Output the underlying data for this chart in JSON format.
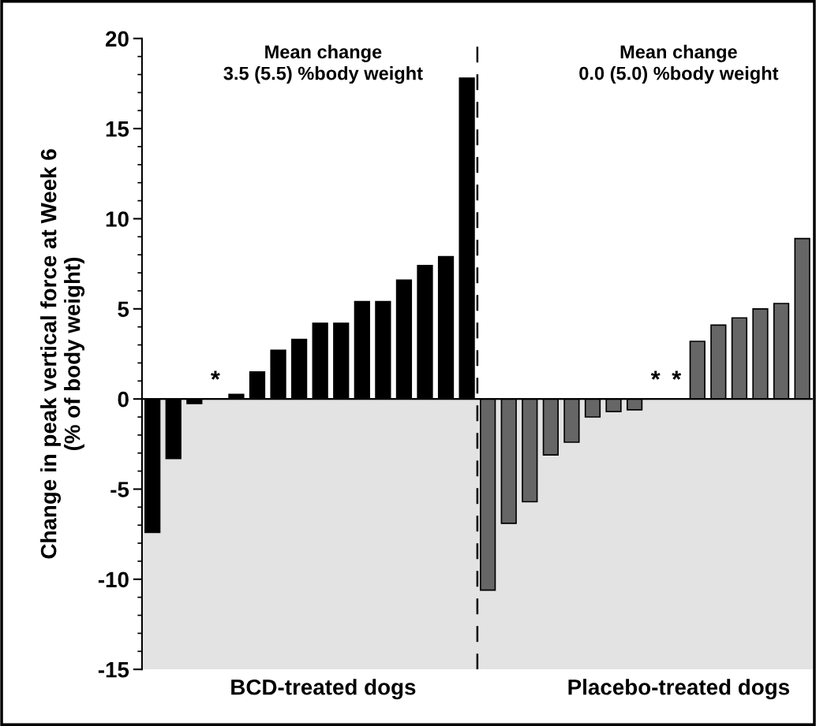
{
  "chart_data": {
    "type": "bar",
    "ylabel": "Change in peak vertical force at Week 6\n(% of body weight)",
    "annotations": [
      "Mean change\n3.5 (5.5) %body weight",
      "Mean change\n0.0 (5.0) %body weight",
      "BCD-treated dogs",
      "Placebo-treated dogs"
    ],
    "categories": [
      null,
      null,
      null,
      null,
      null,
      null,
      null,
      null,
      null,
      null,
      null,
      null,
      null,
      null,
      null,
      null,
      null,
      null,
      null,
      null,
      null,
      null,
      null,
      null,
      null,
      null,
      null,
      null,
      null,
      null,
      null,
      null
    ],
    "values": [
      -7.4,
      -3.3,
      -0.25,
      0,
      0.25,
      1.5,
      2.7,
      3.3,
      4.2,
      4.2,
      5.4,
      5.4,
      6.6,
      7.4,
      7.9,
      17.8,
      -10.6,
      -6.9,
      -5.7,
      -3.1,
      -2.4,
      -1.0,
      -0.7,
      -0.6,
      0,
      0,
      3.2,
      4.1,
      4.5,
      5.0,
      5.3,
      8.9
    ],
    "colors": [
      "#000000",
      "#000000",
      "#000000",
      "#000000",
      "#000000",
      "#000000",
      "#000000",
      "#000000",
      "#000000",
      "#000000",
      "#000000",
      "#000000",
      "#000000",
      "#000000",
      "#000000",
      "#000000",
      "#666666",
      "#666666",
      "#666666",
      "#666666",
      "#666666",
      "#666666",
      "#666666",
      "#666666",
      "#666666",
      "#666666",
      "#666666",
      "#666666",
      "#666666",
      "#666666",
      "#666666",
      "#666666"
    ],
    "value_labels": [
      null,
      null,
      null,
      "*",
      null,
      null,
      null,
      null,
      null,
      null,
      null,
      null,
      null,
      null,
      null,
      null,
      null,
      null,
      null,
      null,
      null,
      null,
      null,
      null,
      "*",
      "*",
      null,
      null,
      null,
      null,
      null,
      null
    ],
    "ylim": [
      -15,
      20
    ],
    "yticks": [
      -15,
      -10,
      -5,
      0,
      5,
      10,
      15,
      20
    ],
    "tick_labels": "y",
    "ref_lines": [
      {
        "axis": "y",
        "value": 0,
        "color": "#000000"
      }
    ],
    "bands": [
      {
        "axis": "y",
        "from": -15,
        "to": 0,
        "color": "#e3e3e3"
      }
    ],
    "grid": false,
    "legend": false
  }
}
